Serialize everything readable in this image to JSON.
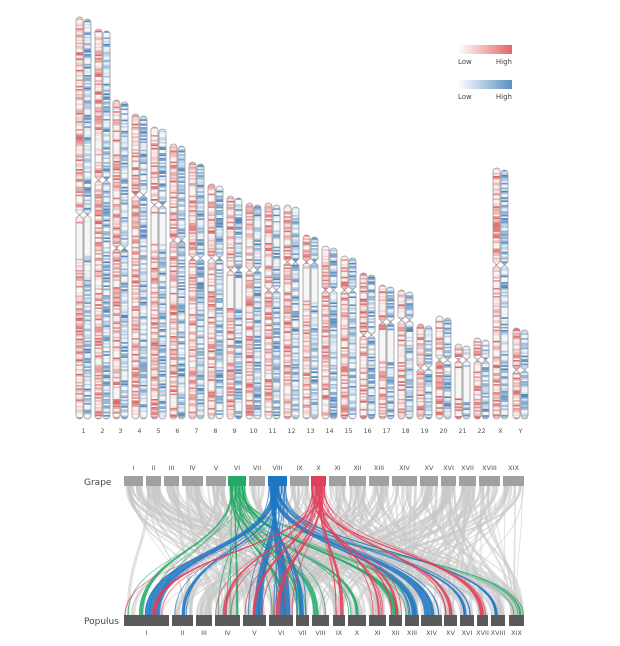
{
  "ideogram": {
    "chromosomes": [
      "1",
      "2",
      "3",
      "4",
      "5",
      "6",
      "7",
      "8",
      "9",
      "10",
      "11",
      "12",
      "13",
      "14",
      "15",
      "16",
      "17",
      "18",
      "19",
      "20",
      "21",
      "22",
      "X",
      "Y"
    ],
    "legend": [
      {
        "low": "Low",
        "high": "High",
        "color": "#e06666"
      },
      {
        "low": "Low",
        "high": "High",
        "color": "#5b8fc4"
      }
    ],
    "colors": {
      "red": "#e06666",
      "blue": "#4f86c0",
      "outline": "#9a9a9a"
    }
  },
  "synteny": {
    "top_label": "Grape",
    "bottom_label": "Populus",
    "top_chromosomes": [
      "I",
      "II",
      "III",
      "IV",
      "V",
      "VI",
      "VII",
      "VIII",
      "IX",
      "X",
      "XI",
      "XII",
      "XIII",
      "XIV",
      "XV",
      "XVI",
      "XVII",
      "XVIII",
      "XIX"
    ],
    "bottom_chromosomes": [
      "I",
      "II",
      "III",
      "IV",
      "V",
      "VI",
      "VII",
      "VIII",
      "IX",
      "X",
      "XI",
      "XII",
      "XIII",
      "XIV",
      "XV",
      "XVI",
      "XVII",
      "XVIII",
      "XIX"
    ],
    "highlight": {
      "VI": "#22aa66",
      "VIII": "#1f77c4",
      "X": "#e0405a"
    },
    "colors": {
      "grey_link": "#c8c8c8",
      "top_bar": "#a0a0a0",
      "bottom_bar": "#5a5a5a"
    }
  }
}
